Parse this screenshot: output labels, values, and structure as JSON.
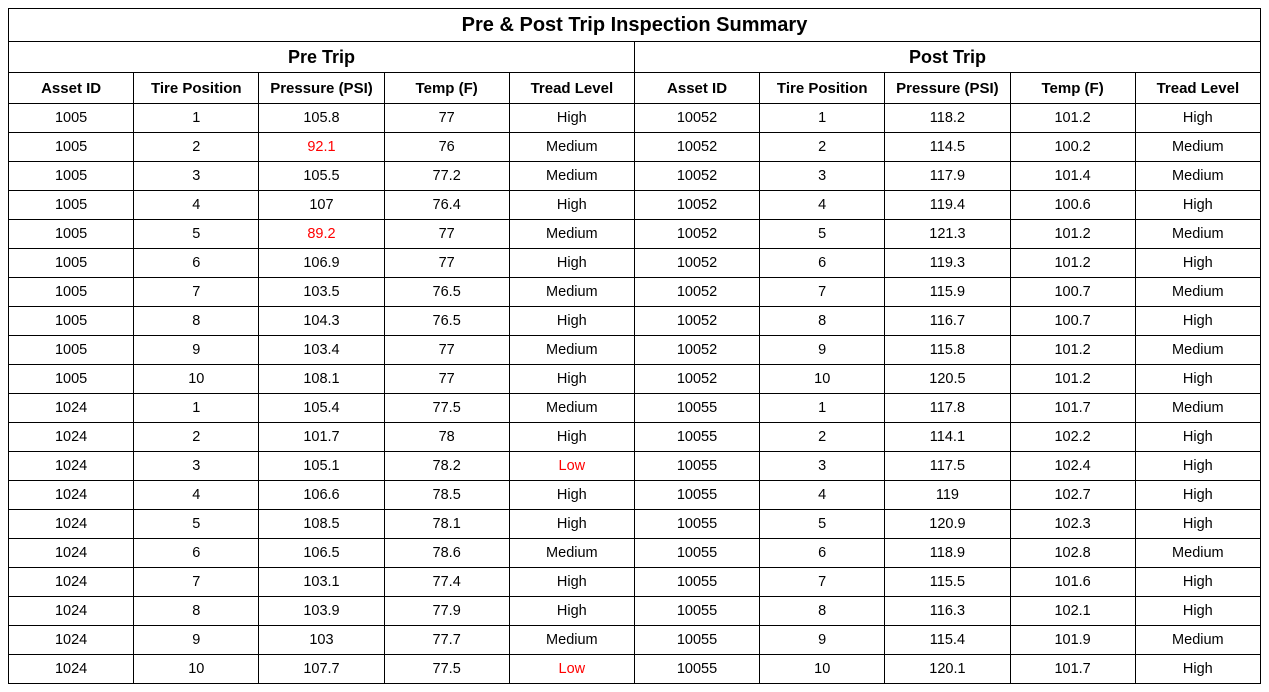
{
  "title": "Pre & Post Trip Inspection Summary",
  "sections": {
    "pre": "Pre Trip",
    "post": "Post Trip"
  },
  "columns": [
    "Asset ID",
    "Tire Position",
    "Pressure (PSI)",
    "Temp (F)",
    "Tread Level"
  ],
  "alert_color": "#ff0000",
  "normal_color": "#000000",
  "border_color": "#000000",
  "background_color": "#ffffff",
  "font_family": "Arial",
  "title_fontsize": 20,
  "section_fontsize": 18,
  "header_fontsize": 15,
  "cell_fontsize": 14.5,
  "pre_rows": [
    {
      "asset_id": "1005",
      "tire_position": "1",
      "pressure": "105.8",
      "pressure_alert": false,
      "temp": "77",
      "tread": "High",
      "tread_alert": false
    },
    {
      "asset_id": "1005",
      "tire_position": "2",
      "pressure": "92.1",
      "pressure_alert": true,
      "temp": "76",
      "tread": "Medium",
      "tread_alert": false
    },
    {
      "asset_id": "1005",
      "tire_position": "3",
      "pressure": "105.5",
      "pressure_alert": false,
      "temp": "77.2",
      "tread": "Medium",
      "tread_alert": false
    },
    {
      "asset_id": "1005",
      "tire_position": "4",
      "pressure": "107",
      "pressure_alert": false,
      "temp": "76.4",
      "tread": "High",
      "tread_alert": false
    },
    {
      "asset_id": "1005",
      "tire_position": "5",
      "pressure": "89.2",
      "pressure_alert": true,
      "temp": "77",
      "tread": "Medium",
      "tread_alert": false
    },
    {
      "asset_id": "1005",
      "tire_position": "6",
      "pressure": "106.9",
      "pressure_alert": false,
      "temp": "77",
      "tread": "High",
      "tread_alert": false
    },
    {
      "asset_id": "1005",
      "tire_position": "7",
      "pressure": "103.5",
      "pressure_alert": false,
      "temp": "76.5",
      "tread": "Medium",
      "tread_alert": false
    },
    {
      "asset_id": "1005",
      "tire_position": "8",
      "pressure": "104.3",
      "pressure_alert": false,
      "temp": "76.5",
      "tread": "High",
      "tread_alert": false
    },
    {
      "asset_id": "1005",
      "tire_position": "9",
      "pressure": "103.4",
      "pressure_alert": false,
      "temp": "77",
      "tread": "Medium",
      "tread_alert": false
    },
    {
      "asset_id": "1005",
      "tire_position": "10",
      "pressure": "108.1",
      "pressure_alert": false,
      "temp": "77",
      "tread": "High",
      "tread_alert": false
    },
    {
      "asset_id": "1024",
      "tire_position": "1",
      "pressure": "105.4",
      "pressure_alert": false,
      "temp": "77.5",
      "tread": "Medium",
      "tread_alert": false
    },
    {
      "asset_id": "1024",
      "tire_position": "2",
      "pressure": "101.7",
      "pressure_alert": false,
      "temp": "78",
      "tread": "High",
      "tread_alert": false
    },
    {
      "asset_id": "1024",
      "tire_position": "3",
      "pressure": "105.1",
      "pressure_alert": false,
      "temp": "78.2",
      "tread": "Low",
      "tread_alert": true
    },
    {
      "asset_id": "1024",
      "tire_position": "4",
      "pressure": "106.6",
      "pressure_alert": false,
      "temp": "78.5",
      "tread": "High",
      "tread_alert": false
    },
    {
      "asset_id": "1024",
      "tire_position": "5",
      "pressure": "108.5",
      "pressure_alert": false,
      "temp": "78.1",
      "tread": "High",
      "tread_alert": false
    },
    {
      "asset_id": "1024",
      "tire_position": "6",
      "pressure": "106.5",
      "pressure_alert": false,
      "temp": "78.6",
      "tread": "Medium",
      "tread_alert": false
    },
    {
      "asset_id": "1024",
      "tire_position": "7",
      "pressure": "103.1",
      "pressure_alert": false,
      "temp": "77.4",
      "tread": "High",
      "tread_alert": false
    },
    {
      "asset_id": "1024",
      "tire_position": "8",
      "pressure": "103.9",
      "pressure_alert": false,
      "temp": "77.9",
      "tread": "High",
      "tread_alert": false
    },
    {
      "asset_id": "1024",
      "tire_position": "9",
      "pressure": "103",
      "pressure_alert": false,
      "temp": "77.7",
      "tread": "Medium",
      "tread_alert": false
    },
    {
      "asset_id": "1024",
      "tire_position": "10",
      "pressure": "107.7",
      "pressure_alert": false,
      "temp": "77.5",
      "tread": "Low",
      "tread_alert": true
    }
  ],
  "post_rows": [
    {
      "asset_id": "10052",
      "tire_position": "1",
      "pressure": "118.2",
      "pressure_alert": false,
      "temp": "101.2",
      "tread": "High",
      "tread_alert": false
    },
    {
      "asset_id": "10052",
      "tire_position": "2",
      "pressure": "114.5",
      "pressure_alert": false,
      "temp": "100.2",
      "tread": "Medium",
      "tread_alert": false
    },
    {
      "asset_id": "10052",
      "tire_position": "3",
      "pressure": "117.9",
      "pressure_alert": false,
      "temp": "101.4",
      "tread": "Medium",
      "tread_alert": false
    },
    {
      "asset_id": "10052",
      "tire_position": "4",
      "pressure": "119.4",
      "pressure_alert": false,
      "temp": "100.6",
      "tread": "High",
      "tread_alert": false
    },
    {
      "asset_id": "10052",
      "tire_position": "5",
      "pressure": "121.3",
      "pressure_alert": false,
      "temp": "101.2",
      "tread": "Medium",
      "tread_alert": false
    },
    {
      "asset_id": "10052",
      "tire_position": "6",
      "pressure": "119.3",
      "pressure_alert": false,
      "temp": "101.2",
      "tread": "High",
      "tread_alert": false
    },
    {
      "asset_id": "10052",
      "tire_position": "7",
      "pressure": "115.9",
      "pressure_alert": false,
      "temp": "100.7",
      "tread": "Medium",
      "tread_alert": false
    },
    {
      "asset_id": "10052",
      "tire_position": "8",
      "pressure": "116.7",
      "pressure_alert": false,
      "temp": "100.7",
      "tread": "High",
      "tread_alert": false
    },
    {
      "asset_id": "10052",
      "tire_position": "9",
      "pressure": "115.8",
      "pressure_alert": false,
      "temp": "101.2",
      "tread": "Medium",
      "tread_alert": false
    },
    {
      "asset_id": "10052",
      "tire_position": "10",
      "pressure": "120.5",
      "pressure_alert": false,
      "temp": "101.2",
      "tread": "High",
      "tread_alert": false
    },
    {
      "asset_id": "10055",
      "tire_position": "1",
      "pressure": "117.8",
      "pressure_alert": false,
      "temp": "101.7",
      "tread": "Medium",
      "tread_alert": false
    },
    {
      "asset_id": "10055",
      "tire_position": "2",
      "pressure": "114.1",
      "pressure_alert": false,
      "temp": "102.2",
      "tread": "High",
      "tread_alert": false
    },
    {
      "asset_id": "10055",
      "tire_position": "3",
      "pressure": "117.5",
      "pressure_alert": false,
      "temp": "102.4",
      "tread": "High",
      "tread_alert": false
    },
    {
      "asset_id": "10055",
      "tire_position": "4",
      "pressure": "119",
      "pressure_alert": false,
      "temp": "102.7",
      "tread": "High",
      "tread_alert": false
    },
    {
      "asset_id": "10055",
      "tire_position": "5",
      "pressure": "120.9",
      "pressure_alert": false,
      "temp": "102.3",
      "tread": "High",
      "tread_alert": false
    },
    {
      "asset_id": "10055",
      "tire_position": "6",
      "pressure": "118.9",
      "pressure_alert": false,
      "temp": "102.8",
      "tread": "Medium",
      "tread_alert": false
    },
    {
      "asset_id": "10055",
      "tire_position": "7",
      "pressure": "115.5",
      "pressure_alert": false,
      "temp": "101.6",
      "tread": "High",
      "tread_alert": false
    },
    {
      "asset_id": "10055",
      "tire_position": "8",
      "pressure": "116.3",
      "pressure_alert": false,
      "temp": "102.1",
      "tread": "High",
      "tread_alert": false
    },
    {
      "asset_id": "10055",
      "tire_position": "9",
      "pressure": "115.4",
      "pressure_alert": false,
      "temp": "101.9",
      "tread": "Medium",
      "tread_alert": false
    },
    {
      "asset_id": "10055",
      "tire_position": "10",
      "pressure": "120.1",
      "pressure_alert": false,
      "temp": "101.7",
      "tread": "High",
      "tread_alert": false
    }
  ]
}
